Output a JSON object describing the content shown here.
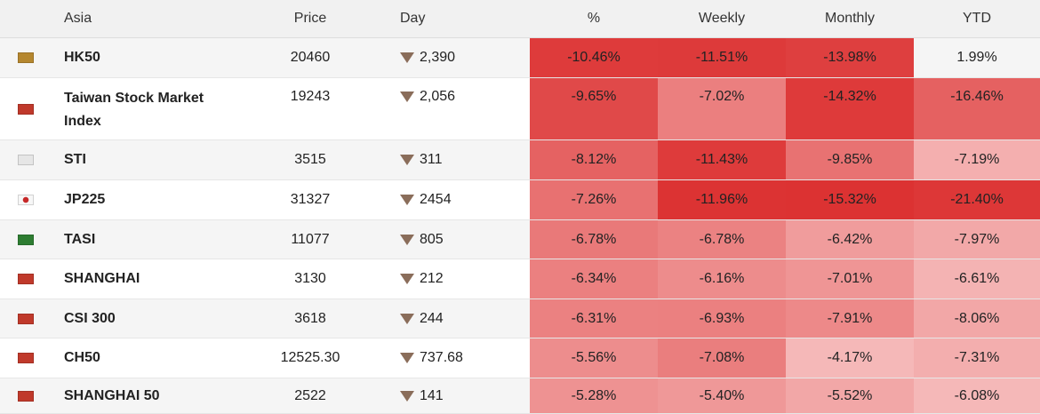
{
  "header": {
    "name": "Asia",
    "price": "Price",
    "day": "Day",
    "pct": "%",
    "weekly": "Weekly",
    "monthly": "Monthly",
    "ytd": "YTD"
  },
  "colors": {
    "flag_HK": "#b5872f",
    "flag_TW": "#c0392b",
    "flag_SG": "#e6e6e6",
    "flag_JP": "#f7f7f7",
    "flag_SA": "#2e7d32",
    "flag_CN": "#c0392b",
    "arrow": "#8a6d5a"
  },
  "rows": [
    {
      "flag": "hong-kong-flag-icon",
      "name": "HK50",
      "price": "20460",
      "day": "2,390",
      "pct": "-10.46%",
      "weekly": "-11.51%",
      "monthly": "-13.98%",
      "ytd": "1.99%"
    },
    {
      "flag": "taiwan-flag-icon",
      "name": "Taiwan Stock Market Index",
      "price": "19243",
      "day": "2,056",
      "pct": "-9.65%",
      "weekly": "-7.02%",
      "monthly": "-14.32%",
      "ytd": "-16.46%"
    },
    {
      "flag": "singapore-flag-icon",
      "name": "STI",
      "price": "3515",
      "day": "311",
      "pct": "-8.12%",
      "weekly": "-11.43%",
      "monthly": "-9.85%",
      "ytd": "-7.19%"
    },
    {
      "flag": "japan-flag-icon",
      "name": "JP225",
      "price": "31327",
      "day": "2454",
      "pct": "-7.26%",
      "weekly": "-11.96%",
      "monthly": "-15.32%",
      "ytd": "-21.40%"
    },
    {
      "flag": "saudi-arabia-flag-icon",
      "name": "TASI",
      "price": "11077",
      "day": "805",
      "pct": "-6.78%",
      "weekly": "-6.78%",
      "monthly": "-6.42%",
      "ytd": "-7.97%"
    },
    {
      "flag": "china-flag-icon",
      "name": "SHANGHAI",
      "price": "3130",
      "day": "212",
      "pct": "-6.34%",
      "weekly": "-6.16%",
      "monthly": "-7.01%",
      "ytd": "-6.61%"
    },
    {
      "flag": "china-flag-icon",
      "name": "CSI 300",
      "price": "3618",
      "day": "244",
      "pct": "-6.31%",
      "weekly": "-6.93%",
      "monthly": "-7.91%",
      "ytd": "-8.06%"
    },
    {
      "flag": "china-flag-icon",
      "name": "CH50",
      "price": "12525.30",
      "day": "737.68",
      "pct": "-5.56%",
      "weekly": "-7.08%",
      "monthly": "-4.17%",
      "ytd": "-7.31%"
    },
    {
      "flag": "china-flag-icon",
      "name": "SHANGHAI 50",
      "price": "2522",
      "day": "141",
      "pct": "-5.28%",
      "weekly": "-5.40%",
      "monthly": "-5.52%",
      "ytd": "-6.08%"
    }
  ]
}
